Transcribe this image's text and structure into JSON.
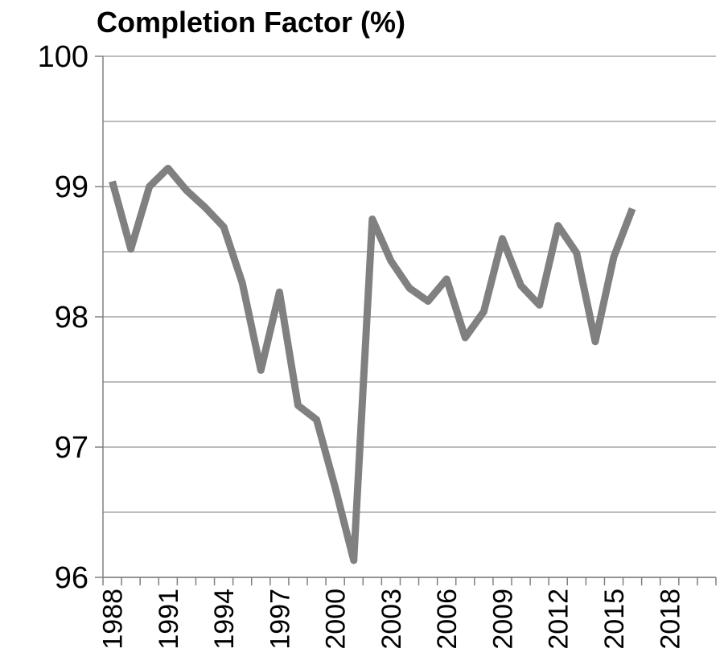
{
  "chart_data": {
    "type": "line",
    "title": "Completion Factor (%)",
    "categories": [
      "1988",
      null,
      null,
      "1991",
      null,
      null,
      "1994",
      null,
      null,
      "1997",
      null,
      null,
      "2000",
      null,
      null,
      "2003",
      null,
      null,
      "2006",
      null,
      null,
      "2009",
      null,
      null,
      "2012",
      null,
      null,
      "2015",
      null,
      null,
      "2018",
      null,
      null
    ],
    "series": [
      {
        "name": "Completion Factor",
        "color": "#808080",
        "values": [
          99.04,
          98.52,
          99.0,
          99.14,
          98.97,
          98.84,
          98.69,
          98.26,
          97.59,
          98.19,
          97.32,
          97.21,
          96.69,
          96.13,
          98.75,
          98.43,
          98.22,
          98.12,
          98.29,
          97.84,
          98.04,
          98.6,
          98.24,
          98.09,
          98.7,
          98.49,
          97.81,
          98.46,
          98.83,
          null,
          null,
          null,
          null
        ]
      }
    ],
    "ylim": [
      96,
      100
    ],
    "yticks": [
      96,
      97,
      98,
      99,
      100
    ],
    "minor_yticks": [
      96.5,
      97.5,
      98.5,
      99.5
    ],
    "grid": true
  }
}
